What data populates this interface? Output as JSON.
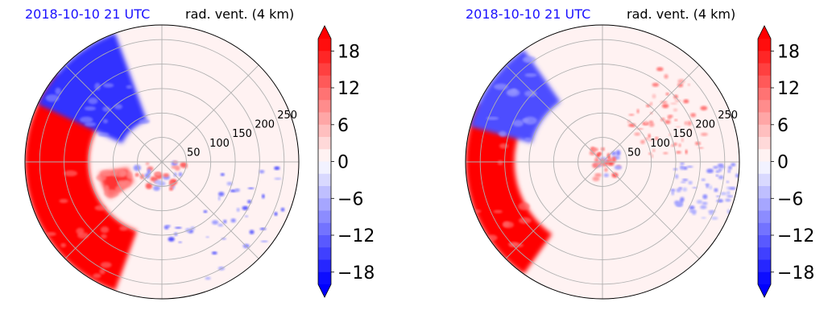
{
  "colors": {
    "title_left": "#1a10ff",
    "title_right": "#000000",
    "positive_max": "#ff0000",
    "negative_max": "#0000ff",
    "zero": "#ffffff",
    "grid": "#b0b0b0"
  },
  "chart_data": [
    {
      "type": "heatmap",
      "projection": "polar",
      "title_left": "2018-10-10 21 UTC",
      "title_right": "rad. vent. (4 km)",
      "r_ticks": [
        50,
        100,
        150,
        200,
        250
      ],
      "r_max": 280,
      "grid": true,
      "colorbar": {
        "levels_min": -20,
        "levels_max": 20,
        "step": 2,
        "ticks": [
          18,
          12,
          6,
          0,
          -6,
          -12,
          -18
        ],
        "tick_labels": [
          "18",
          "12",
          "6",
          "0",
          "−6",
          "−12",
          "−18"
        ],
        "extend": "both",
        "cmap": "bwr"
      },
      "features": [
        {
          "kind": "positive-sector",
          "theta_from": 140,
          "theta_to": 250,
          "r_from": 150,
          "r_to": 280,
          "value": 20
        },
        {
          "kind": "negative-band",
          "theta_from": 110,
          "theta_to": 155,
          "r_from": 90,
          "r_to": 280,
          "value": -16
        },
        {
          "kind": "positive-band",
          "theta_from": 190,
          "theta_to": 215,
          "r_from": 70,
          "r_to": 130,
          "value": 16
        },
        {
          "kind": "eyewall-ring",
          "theta_from": 180,
          "theta_to": 360,
          "r_from": 25,
          "r_to": 60,
          "value": 14
        },
        {
          "kind": "scattered-negative",
          "theta_from": 270,
          "theta_to": 360,
          "r_from": 120,
          "r_to": 270,
          "value": -14
        }
      ]
    },
    {
      "type": "heatmap",
      "projection": "polar",
      "title_left": "2018-10-10 21 UTC",
      "title_right": "rad. vent. (4 km)",
      "r_ticks": [
        50,
        100,
        150,
        200,
        250
      ],
      "r_max": 280,
      "grid": true,
      "colorbar": {
        "levels_min": -20,
        "levels_max": 20,
        "step": 2,
        "ticks": [
          18,
          12,
          6,
          0,
          -6,
          -12,
          -18
        ],
        "tick_labels": [
          "18",
          "12",
          "6",
          "0",
          "−6",
          "−12",
          "−18"
        ],
        "extend": "both",
        "cmap": "bwr"
      },
      "features": [
        {
          "kind": "positive-sector",
          "theta_from": 155,
          "theta_to": 235,
          "r_from": 180,
          "r_to": 280,
          "value": 20
        },
        {
          "kind": "negative-band",
          "theta_from": 125,
          "theta_to": 165,
          "r_from": 150,
          "r_to": 280,
          "value": -14
        },
        {
          "kind": "positive-streaks",
          "theta_from": 5,
          "theta_to": 60,
          "r_from": 90,
          "r_to": 240,
          "value": 12
        },
        {
          "kind": "negative-streaks",
          "theta_from": 330,
          "theta_to": 360,
          "r_from": 150,
          "r_to": 280,
          "value": -10
        },
        {
          "kind": "center-dipole",
          "theta_from": 0,
          "theta_to": 360,
          "r_from": 0,
          "r_to": 40,
          "value": 14
        }
      ]
    }
  ]
}
